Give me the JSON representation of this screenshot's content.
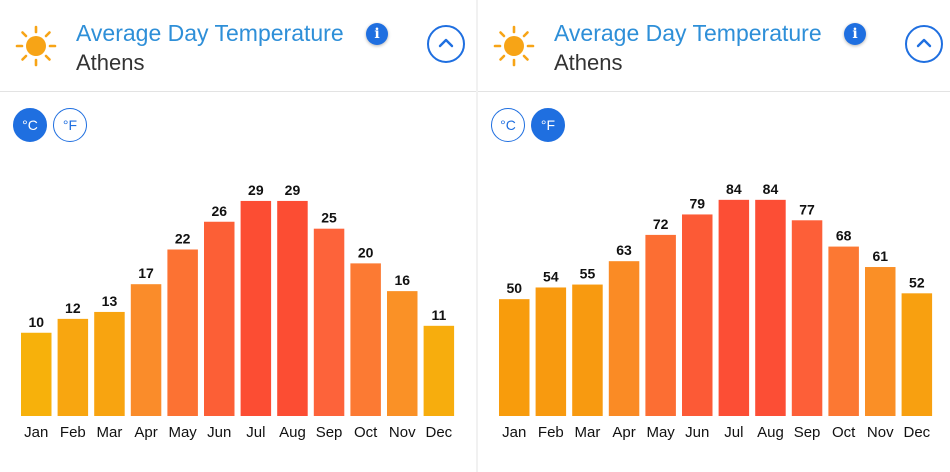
{
  "panels": [
    {
      "title": "Average Day Temperature",
      "city": "Athens",
      "info_icon": "i",
      "units": {
        "celsius": "°C",
        "fahrenheit": "°F",
        "selected": "celsius"
      },
      "chart_data": {
        "type": "bar",
        "title": "Average Day Temperature",
        "categories": [
          "Jan",
          "Feb",
          "Mar",
          "Apr",
          "May",
          "Jun",
          "Jul",
          "Aug",
          "Sep",
          "Oct",
          "Nov",
          "Dec"
        ],
        "values": [
          10,
          12,
          13,
          17,
          22,
          26,
          29,
          29,
          25,
          20,
          16,
          11
        ],
        "unit": "°C",
        "ylim": [
          -2,
          30
        ],
        "grid": false,
        "colors": [
          "#f7b10b",
          "#f8a610",
          "#f8a410",
          "#fa8c2a",
          "#fc7233",
          "#fc5f36",
          "#fc4d33",
          "#fc4d33",
          "#fd633a",
          "#fc7a33",
          "#fa9126",
          "#f7ad0d"
        ]
      }
    },
    {
      "title": "Average Day Temperature",
      "city": "Athens",
      "info_icon": "i",
      "units": {
        "celsius": "°C",
        "fahrenheit": "°F",
        "selected": "fahrenheit"
      },
      "chart_data": {
        "type": "bar",
        "title": "Average Day Temperature",
        "categories": [
          "Jan",
          "Feb",
          "Mar",
          "Apr",
          "May",
          "Jun",
          "Jul",
          "Aug",
          "Sep",
          "Oct",
          "Nov",
          "Dec"
        ],
        "values": [
          50,
          54,
          55,
          63,
          72,
          79,
          84,
          84,
          77,
          68,
          61,
          52
        ],
        "unit": "°F",
        "ylim": [
          10,
          86
        ],
        "grid": false,
        "colors": [
          "#f89c0c",
          "#f89a0f",
          "#f89a10",
          "#fa8b25",
          "#fc6e33",
          "#fc5a36",
          "#fc4e35",
          "#fc4e35",
          "#fd5f38",
          "#fc7833",
          "#fa8f26",
          "#f8a010"
        ]
      }
    }
  ]
}
